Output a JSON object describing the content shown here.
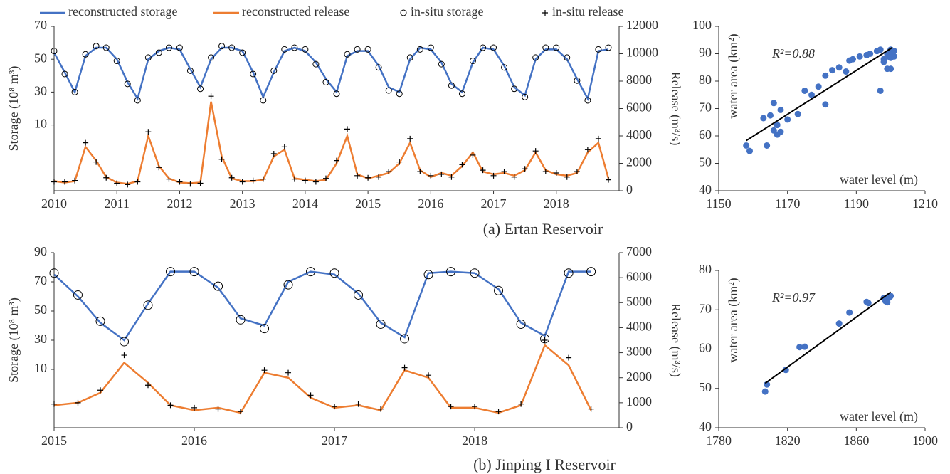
{
  "chart_data": [
    {
      "type": "line",
      "caption": "(a) Ertan Reservoir",
      "y_label": "Storage (10⁸ m³)",
      "y2_label": "Release (m³/s)",
      "x": [
        2010,
        2010.17,
        2010.33,
        2010.5,
        2010.67,
        2010.83,
        2011,
        2011.17,
        2011.33,
        2011.5,
        2011.67,
        2011.83,
        2012,
        2012.17,
        2012.33,
        2012.5,
        2012.67,
        2012.83,
        2013,
        2013.17,
        2013.33,
        2013.5,
        2013.67,
        2013.83,
        2014,
        2014.17,
        2014.33,
        2014.5,
        2014.67,
        2014.83,
        2015,
        2015.17,
        2015.33,
        2015.5,
        2015.67,
        2015.83,
        2016,
        2016.17,
        2016.33,
        2016.5,
        2016.67,
        2016.83,
        2017,
        2017.17,
        2017.33,
        2017.5,
        2017.67,
        2017.83,
        2018,
        2018.17,
        2018.33,
        2018.5,
        2018.67,
        2018.83
      ],
      "xlim": [
        2010,
        2019
      ],
      "xticks": [
        2010,
        2011,
        2012,
        2013,
        2014,
        2015,
        2016,
        2017,
        2018
      ],
      "ylim": [
        -30,
        70
      ],
      "yticks": [
        10,
        30,
        50,
        70
      ],
      "y2lim": [
        0,
        12000
      ],
      "y2ticks": [
        0,
        2000,
        4000,
        6000,
        8000,
        10000,
        12000
      ],
      "series": [
        {
          "name": "reconstructed storage",
          "color": "#4472c4",
          "style": "line",
          "axis": "y",
          "values": [
            54,
            42,
            30,
            52,
            57,
            57,
            50,
            36,
            26,
            50,
            55,
            57,
            56,
            44,
            33,
            50,
            57,
            57,
            55,
            42,
            27,
            42,
            55,
            57,
            55,
            48,
            38,
            30,
            52,
            55,
            55,
            46,
            33,
            30,
            50,
            57,
            56,
            48,
            35,
            30,
            48,
            57,
            56,
            46,
            33,
            28,
            50,
            56,
            56,
            50,
            38,
            26,
            55,
            56
          ]
        },
        {
          "name": "reconstructed release",
          "color": "#ed7d31",
          "style": "line",
          "axis": "y2",
          "values": [
            700,
            600,
            700,
            3200,
            2200,
            1000,
            600,
            500,
            700,
            4000,
            1800,
            900,
            600,
            550,
            600,
            6500,
            2500,
            900,
            700,
            700,
            800,
            2500,
            3000,
            900,
            800,
            700,
            800,
            2000,
            4000,
            1200,
            900,
            1100,
            1300,
            2000,
            3500,
            1500,
            1000,
            1300,
            1100,
            1800,
            2800,
            1400,
            1200,
            1300,
            1100,
            1500,
            2800,
            1500,
            1200,
            1100,
            1300,
            2800,
            3500,
            900
          ]
        },
        {
          "name": "in-situ storage",
          "color": "#000000",
          "style": "circle",
          "axis": "y",
          "values": [
            55,
            41,
            30,
            53,
            58,
            57,
            49,
            35,
            25,
            51,
            54,
            57,
            57,
            43,
            32,
            51,
            58,
            57,
            54,
            41,
            25,
            43,
            56,
            57,
            56,
            47,
            36,
            29,
            53,
            56,
            56,
            45,
            31,
            29,
            51,
            56,
            57,
            47,
            34,
            29,
            49,
            57,
            57,
            45,
            32,
            27,
            51,
            57,
            57,
            51,
            37,
            25,
            56,
            57
          ]
        },
        {
          "name": "in-situ release",
          "color": "#000000",
          "style": "plus",
          "axis": "y2",
          "values": [
            650,
            650,
            750,
            3500,
            2100,
            950,
            550,
            450,
            650,
            4300,
            1700,
            850,
            650,
            500,
            550,
            6900,
            2300,
            950,
            650,
            750,
            850,
            2700,
            3200,
            850,
            750,
            650,
            900,
            2200,
            4500,
            1100,
            950,
            1000,
            1400,
            2100,
            3800,
            1400,
            1100,
            1200,
            1000,
            1900,
            2600,
            1500,
            1100,
            1400,
            1000,
            1600,
            2900,
            1400,
            1300,
            1000,
            1400,
            3000,
            3800,
            800
          ]
        }
      ]
    },
    {
      "type": "line",
      "caption": "(b) Jinping I Reservoir",
      "y_label": "Storage (10⁸ m³)",
      "y2_label": "Release (m³/s)",
      "x": [
        2015,
        2015.17,
        2015.33,
        2015.5,
        2015.67,
        2015.83,
        2016,
        2016.17,
        2016.33,
        2016.5,
        2016.67,
        2016.83,
        2017,
        2017.17,
        2017.33,
        2017.5,
        2017.67,
        2017.83,
        2018,
        2018.17,
        2018.33,
        2018.5,
        2018.67,
        2018.83
      ],
      "xlim": [
        2015,
        2019.03
      ],
      "xticks": [
        2015,
        2016,
        2017,
        2018
      ],
      "ylim": [
        -30,
        90
      ],
      "yticks": [
        10,
        30,
        50,
        70,
        90
      ],
      "y2lim": [
        0,
        7000
      ],
      "y2ticks": [
        0,
        1000,
        2000,
        3000,
        4000,
        5000,
        6000,
        7000
      ],
      "series": [
        {
          "color": "#4472c4",
          "style": "line",
          "axis": "y",
          "values": [
            75,
            60,
            42,
            30,
            55,
            77,
            77,
            66,
            45,
            40,
            70,
            77,
            75,
            62,
            42,
            32,
            76,
            77,
            76,
            65,
            42,
            33,
            77,
            77
          ]
        },
        {
          "color": "#ed7d31",
          "style": "line",
          "axis": "y2",
          "values": [
            900,
            1000,
            1400,
            2600,
            1800,
            900,
            700,
            800,
            600,
            2200,
            2000,
            1200,
            800,
            900,
            700,
            2300,
            2000,
            800,
            800,
            600,
            900,
            3300,
            2500,
            700
          ]
        },
        {
          "color": "#000000",
          "style": "circle",
          "axis": "y",
          "values": [
            76,
            61,
            43,
            29,
            54,
            77,
            77,
            67,
            44,
            38,
            68,
            77,
            76,
            61,
            41,
            31,
            75,
            77,
            76,
            64,
            41,
            31,
            76,
            77
          ]
        },
        {
          "color": "#000000",
          "style": "plus",
          "axis": "y2",
          "values": [
            950,
            1000,
            1500,
            2900,
            1700,
            900,
            800,
            750,
            650,
            2300,
            2200,
            1300,
            850,
            950,
            750,
            2400,
            2100,
            850,
            850,
            650,
            950,
            3500,
            2800,
            750
          ]
        }
      ]
    },
    {
      "type": "scatter",
      "x_label": "water level (m)",
      "y_label": "water area (km²)",
      "annotation": "R²=0.88",
      "color": "#4472c4",
      "xlim": [
        1150,
        1210
      ],
      "xticks": [
        1150,
        1170,
        1190,
        1210
      ],
      "ylim": [
        40,
        100
      ],
      "yticks": [
        40,
        50,
        60,
        70,
        80,
        90,
        100
      ],
      "x": [
        1158,
        1159,
        1163,
        1164,
        1165,
        1166,
        1166,
        1167,
        1167,
        1168,
        1168,
        1170,
        1173,
        1175,
        1177,
        1179,
        1181,
        1181,
        1183,
        1185,
        1187,
        1188,
        1189,
        1191,
        1193,
        1194,
        1196,
        1197,
        1197,
        1198,
        1198,
        1199,
        1199,
        1199,
        1200,
        1200,
        1200,
        1200,
        1201,
        1201
      ],
      "y": [
        56.5,
        54.5,
        66.5,
        56.5,
        67.5,
        72,
        62,
        64,
        60.5,
        69.5,
        61.5,
        66,
        68,
        76.5,
        75,
        78,
        71.5,
        82,
        84,
        85,
        83.5,
        87.5,
        88,
        89,
        89.5,
        90,
        91,
        91.5,
        76.5,
        88,
        87,
        90,
        84.5,
        89,
        91.5,
        84.5,
        88.5,
        90,
        89,
        91
      ],
      "fit": {
        "x": [
          1158,
          1200.5
        ],
        "y": [
          58.3,
          92.3
        ]
      }
    },
    {
      "type": "scatter",
      "x_label": "water level (m)",
      "y_label": "water area (km²)",
      "annotation": "R²=0.97",
      "color": "#4472c4",
      "xlim": [
        1780,
        1900
      ],
      "xticks": [
        1780,
        1820,
        1860,
        1900
      ],
      "ylim": [
        40,
        80
      ],
      "yticks": [
        40,
        50,
        60,
        70,
        80
      ],
      "x": [
        1807,
        1808,
        1819,
        1827,
        1830,
        1850,
        1856,
        1866,
        1867,
        1876,
        1877,
        1878,
        1879,
        1880,
        1878
      ],
      "y": [
        49.2,
        51,
        54.7,
        60.5,
        60.6,
        66.5,
        69.3,
        72,
        71.7,
        73,
        72.2,
        72.5,
        73.1,
        73.5,
        71.9
      ],
      "fit": {
        "x": [
          1807,
          1880
        ],
        "y": [
          51.3,
          74.5
        ]
      }
    }
  ]
}
